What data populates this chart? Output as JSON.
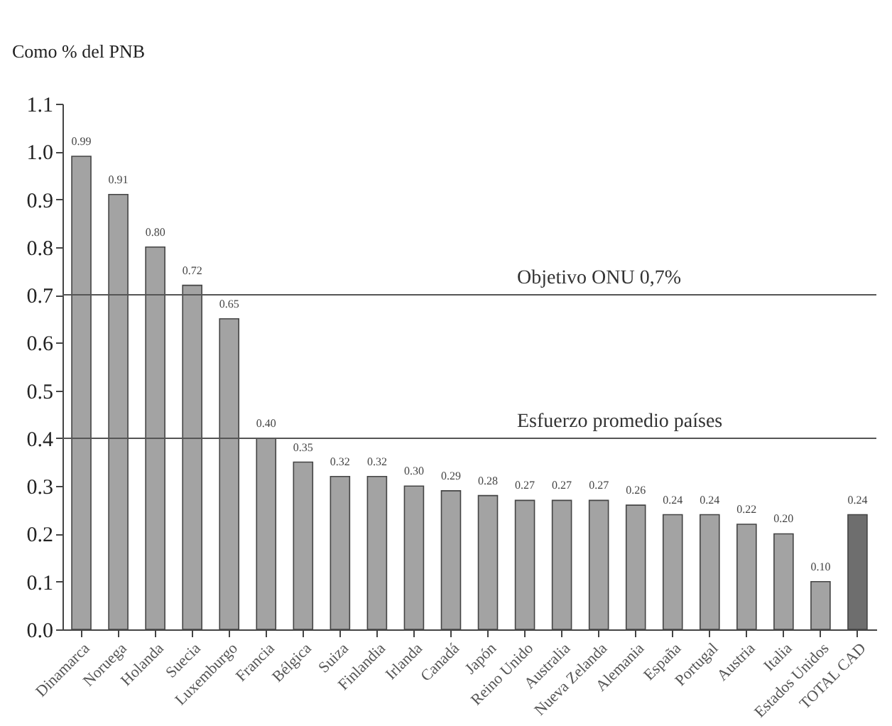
{
  "chart_data": {
    "type": "bar",
    "ylabel": "Como % del PNB",
    "categories": [
      "Dinamarca",
      "Noruega",
      "Holanda",
      "Suecia",
      "Luxemburgo",
      "Francia",
      "Bélgica",
      "Suiza",
      "Finlandia",
      "Irlanda",
      "Canadá",
      "Japón",
      "Reino Unido",
      "Australia",
      "Nueva Zelanda",
      "Alemania",
      "España",
      "Portugal",
      "Austria",
      "Italia",
      "Estados Unidos",
      "TOTAL CAD"
    ],
    "values": [
      0.99,
      0.91,
      0.8,
      0.72,
      0.65,
      0.4,
      0.35,
      0.32,
      0.32,
      0.3,
      0.29,
      0.28,
      0.27,
      0.27,
      0.27,
      0.26,
      0.24,
      0.24,
      0.22,
      0.2,
      0.1,
      0.24
    ],
    "value_labels": [
      "0.99",
      "0.91",
      "0.80",
      "0.72",
      "0.65",
      "0.40",
      "0.35",
      "0.32",
      "0.32",
      "0.30",
      "0.29",
      "0.28",
      "0.27",
      "0.27",
      "0.27",
      "0.26",
      "0.24",
      "0.24",
      "0.22",
      "0.20",
      "0.10",
      "0.24"
    ],
    "colors": [
      "#a3a3a3",
      "#a3a3a3",
      "#a3a3a3",
      "#a3a3a3",
      "#a3a3a3",
      "#a3a3a3",
      "#a3a3a3",
      "#a3a3a3",
      "#a3a3a3",
      "#a3a3a3",
      "#a3a3a3",
      "#a3a3a3",
      "#a3a3a3",
      "#a3a3a3",
      "#a3a3a3",
      "#a3a3a3",
      "#a3a3a3",
      "#a3a3a3",
      "#a3a3a3",
      "#a3a3a3",
      "#a3a3a3",
      "#6e6e6e"
    ],
    "ylim": [
      0,
      1.1
    ],
    "yticks": [
      {
        "value": 0,
        "label": "0.0"
      },
      0.1,
      0.2,
      0.3,
      0.4,
      0.5,
      0.6,
      0.7,
      0.8,
      0.9,
      {
        "value": 1,
        "label": "1.0"
      },
      1.1
    ],
    "ref_lines": [
      {
        "axis": "y",
        "value": 0.7,
        "label": "Objetivo ONU 0,7%",
        "color": "#555555"
      },
      {
        "axis": "y",
        "value": 0.4,
        "label": "Esfuerzo promedio países",
        "color": "#555555"
      }
    ]
  }
}
